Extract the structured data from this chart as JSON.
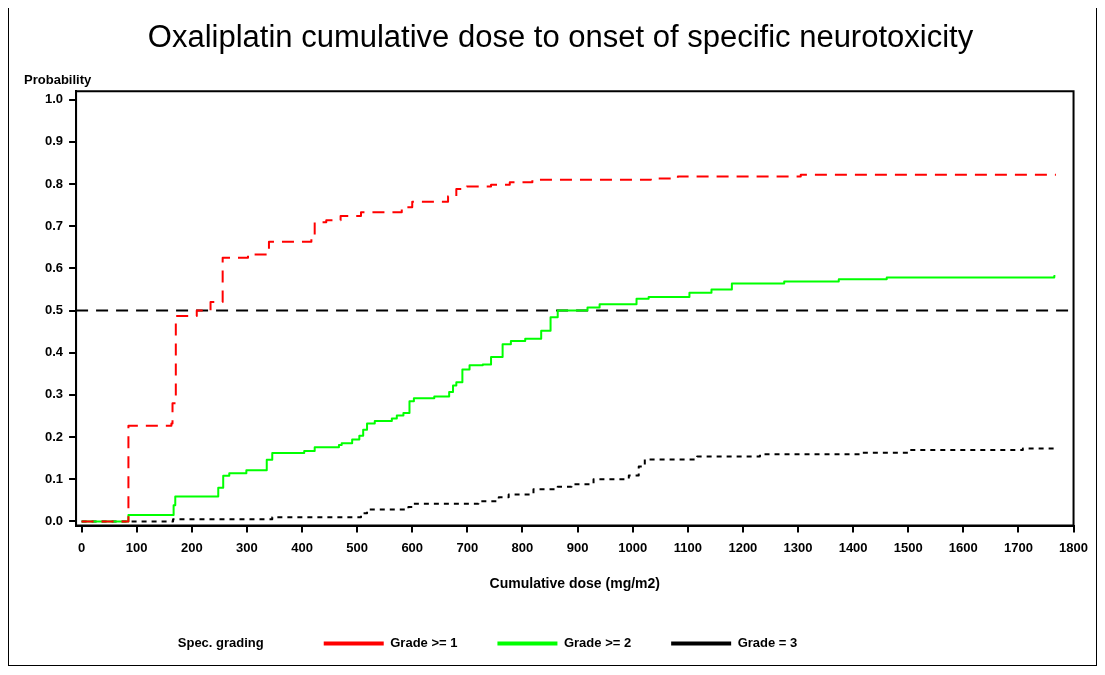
{
  "chart_data": {
    "type": "step",
    "title": "Oxaliplatin cumulative dose to onset of specific neurotoxicity",
    "xlabel": "Cumulative dose (mg/m2)",
    "ylabel": "Probability",
    "legend_title": "Spec. grading",
    "legend": "bottom",
    "grid": false,
    "xlim": [
      -10,
      1800
    ],
    "xticks": [
      0,
      100,
      200,
      300,
      400,
      500,
      600,
      700,
      800,
      900,
      1000,
      1100,
      1200,
      1300,
      1400,
      1500,
      1600,
      1700,
      1800
    ],
    "ylim": [
      -0.01,
      1.02
    ],
    "yticks": [
      {
        "value": 0,
        "label": "0.0"
      },
      0.1,
      0.2,
      0.3,
      0.4,
      0.5,
      0.6,
      0.7,
      0.8,
      0.9,
      {
        "value": 1,
        "label": "1.0"
      }
    ],
    "ref_lines": [
      {
        "axis": "y",
        "value": 0.5,
        "color": "#000000",
        "line_style": "dashed"
      }
    ],
    "series": [
      {
        "name": "Grade >= 1",
        "color": "#ff0000",
        "line_style": "dashed",
        "x": [
          0,
          85,
          163,
          165,
          171,
          209,
          234,
          256,
          302,
          340,
          417,
          423,
          444,
          470,
          507,
          581,
          600,
          665,
          680,
          699,
          743,
          777,
          818,
          1033,
          1082,
          1305,
          1768
        ],
        "values": [
          0,
          0.227,
          0.232,
          0.28,
          0.487,
          0.5,
          0.52,
          0.625,
          0.633,
          0.663,
          0.675,
          0.709,
          0.714,
          0.724,
          0.733,
          0.745,
          0.758,
          0.771,
          0.788,
          0.794,
          0.798,
          0.804,
          0.81,
          0.813,
          0.818,
          0.822,
          0.822
        ]
      },
      {
        "name": "Grade >= 2",
        "color": "#00ff00",
        "line_style": "solid",
        "x": [
          0,
          85,
          167,
          170,
          248,
          257,
          268,
          299,
          336,
          346,
          404,
          423,
          467,
          472,
          491,
          504,
          511,
          518,
          532,
          563,
          572,
          584,
          595,
          603,
          640,
          667,
          674,
          680,
          691,
          704,
          728,
          743,
          764,
          779,
          805,
          834,
          851,
          864,
          918,
          940,
          1007,
          1029,
          1103,
          1143,
          1180,
          1275,
          1374,
          1461,
          1765,
          1767
        ],
        "values": [
          0,
          0.015,
          0.038,
          0.059,
          0.08,
          0.108,
          0.114,
          0.121,
          0.146,
          0.162,
          0.167,
          0.176,
          0.181,
          0.185,
          0.194,
          0.203,
          0.217,
          0.232,
          0.238,
          0.244,
          0.251,
          0.257,
          0.285,
          0.292,
          0.296,
          0.307,
          0.322,
          0.33,
          0.36,
          0.37,
          0.372,
          0.39,
          0.42,
          0.428,
          0.433,
          0.452,
          0.484,
          0.5,
          0.507,
          0.515,
          0.528,
          0.532,
          0.542,
          0.55,
          0.564,
          0.569,
          0.574,
          0.578,
          0.582,
          0.582
        ]
      },
      {
        "name": "Grade = 3",
        "color": "#000000",
        "line_style": "dotted",
        "x": [
          0,
          166,
          346,
          507,
          518,
          593,
          602,
          720,
          757,
          775,
          820,
          864,
          889,
          929,
          993,
          1011,
          1022,
          1117,
          1231,
          1414,
          1503,
          1708,
          1768
        ],
        "values": [
          0,
          0.005,
          0.01,
          0.019,
          0.028,
          0.034,
          0.042,
          0.048,
          0.057,
          0.064,
          0.076,
          0.082,
          0.088,
          0.1,
          0.109,
          0.13,
          0.147,
          0.154,
          0.159,
          0.163,
          0.169,
          0.173,
          0.173
        ]
      }
    ]
  }
}
